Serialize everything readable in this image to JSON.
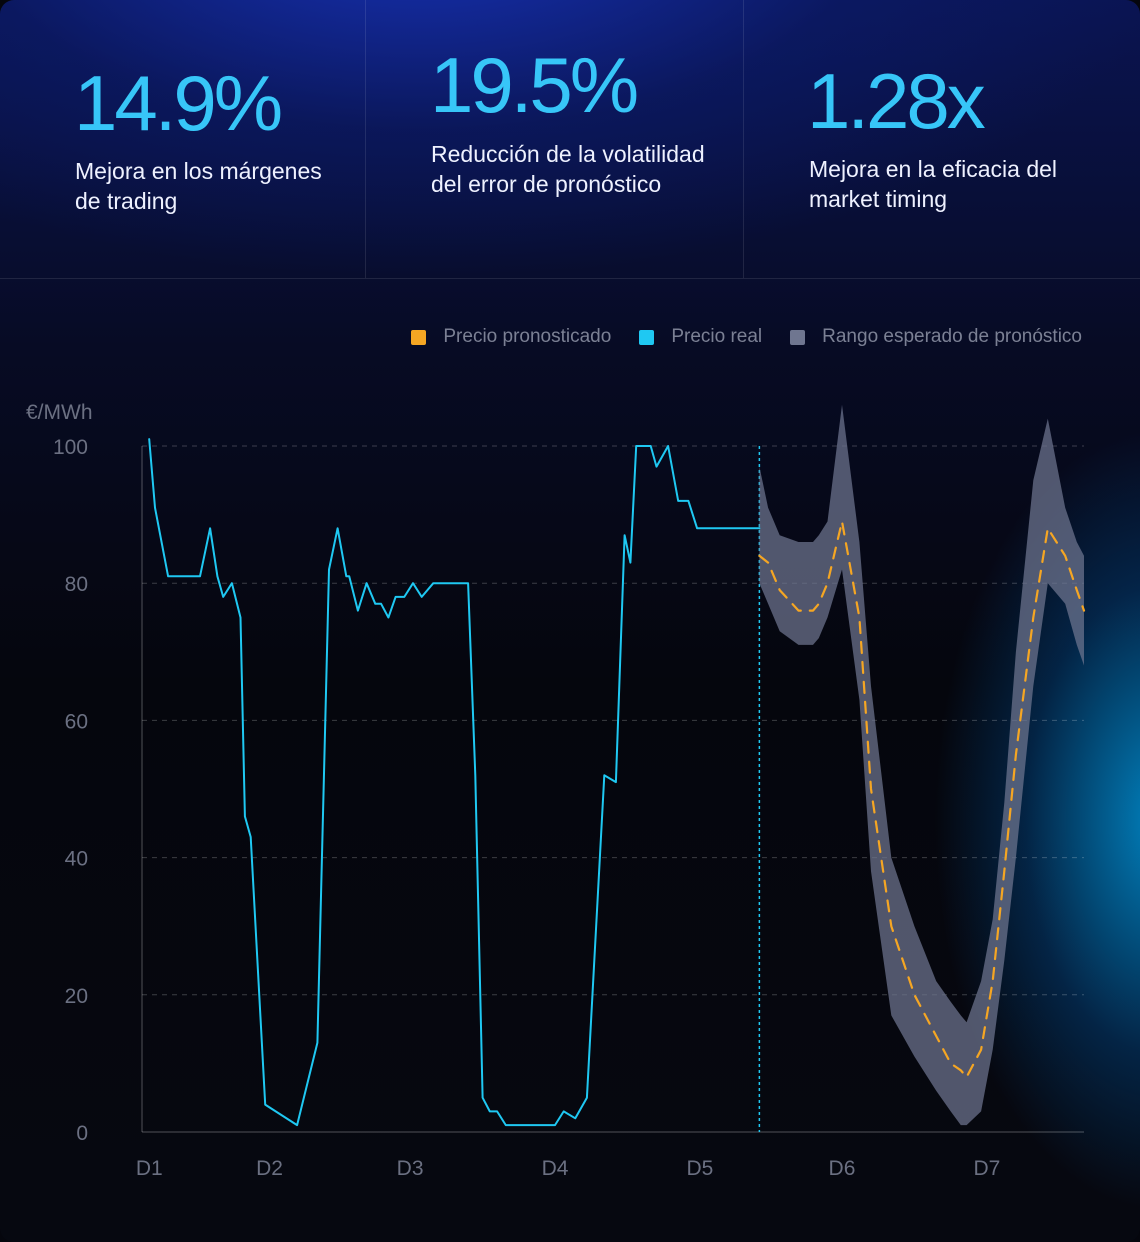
{
  "stats": [
    {
      "value": "14.9%",
      "description": "Mejora en los márgenes de trading"
    },
    {
      "value": "19.5%",
      "description": "Reducción de la volatilidad del error de pronóstico"
    },
    {
      "value": "1.28x",
      "description": "Mejora en la eficacia del market timing"
    }
  ],
  "colors": {
    "forecast": "#f5a623",
    "actual": "#1fc8f2",
    "range": "#6f7690",
    "stat_value": "#37c6f8"
  },
  "chart_data": {
    "type": "line",
    "ylabel": "€/MWh",
    "ylim": [
      0,
      100
    ],
    "yticks": [
      0,
      20,
      40,
      60,
      80,
      100
    ],
    "xlim": [
      0.95,
      7.45
    ],
    "x_ticks": [
      {
        "label": "D1",
        "x": 1.0
      },
      {
        "label": "D2",
        "x": 1.83
      },
      {
        "label": "D3",
        "x": 2.8
      },
      {
        "label": "D4",
        "x": 3.8
      },
      {
        "label": "D5",
        "x": 4.8
      },
      {
        "label": "D6",
        "x": 5.78
      },
      {
        "label": "D7",
        "x": 6.78
      }
    ],
    "grid": true,
    "legend_position": "top-right",
    "forecast_start_x": 5.21,
    "series": [
      {
        "name": "Precio pronosticado",
        "style": "dashed",
        "x": [
          5.21,
          5.27,
          5.35,
          5.48,
          5.58,
          5.62,
          5.68,
          5.78,
          5.9,
          5.98,
          6.12,
          6.28,
          6.43,
          6.53,
          6.6,
          6.64,
          6.74,
          6.82,
          6.9,
          6.98,
          7.1,
          7.2,
          7.32,
          7.4,
          7.45
        ],
        "y": [
          84,
          83,
          79,
          76,
          76,
          77,
          80,
          89,
          75,
          50,
          30,
          20,
          14,
          10,
          9,
          8,
          12,
          22,
          38,
          55,
          75,
          88,
          84,
          79,
          76
        ]
      },
      {
        "name": "Precio real",
        "style": "solid",
        "x": [
          1.0,
          1.04,
          1.13,
          1.25,
          1.35,
          1.42,
          1.47,
          1.51,
          1.57,
          1.63,
          1.66,
          1.7,
          1.8,
          2.02,
          2.16,
          2.24,
          2.3,
          2.36,
          2.38,
          2.44,
          2.5,
          2.56,
          2.6,
          2.65,
          2.7,
          2.76,
          2.82,
          2.88,
          2.96,
          3.03,
          3.12,
          3.2,
          3.25,
          3.3,
          3.35,
          3.4,
          3.46,
          3.52,
          3.6,
          3.68,
          3.76,
          3.8,
          3.86,
          3.94,
          4.02,
          4.14,
          4.22,
          4.28,
          4.32,
          4.36,
          4.4,
          4.46,
          4.5,
          4.58,
          4.65,
          4.72,
          4.78,
          4.85,
          4.92,
          4.99,
          5.03,
          5.06,
          5.1,
          5.16,
          5.21
        ],
        "y": [
          101,
          91,
          81,
          81,
          81,
          88,
          81,
          78,
          80,
          75,
          46,
          43,
          4,
          1,
          13,
          82,
          88,
          81,
          81,
          76,
          80,
          77,
          77,
          75,
          78,
          78,
          80,
          78,
          80,
          80,
          80,
          80,
          52,
          5,
          3,
          3,
          1,
          1,
          1,
          1,
          1,
          1,
          3,
          2,
          5,
          52,
          51,
          87,
          83,
          100,
          100,
          100,
          97,
          100,
          92,
          92,
          88,
          88,
          88,
          88,
          88,
          88,
          88,
          88,
          88
        ]
      },
      {
        "name": "Rango esperado de pronóstico",
        "style": "band",
        "x": [
          5.21,
          5.27,
          5.35,
          5.48,
          5.58,
          5.62,
          5.68,
          5.78,
          5.9,
          5.98,
          6.12,
          6.28,
          6.43,
          6.53,
          6.6,
          6.64,
          6.74,
          6.82,
          6.9,
          6.98,
          7.1,
          7.2,
          7.32,
          7.4,
          7.45
        ],
        "lower": [
          80,
          77,
          73,
          71,
          71,
          72,
          75,
          82,
          63,
          38,
          17,
          11,
          6,
          3,
          1,
          1,
          3,
          12,
          25,
          40,
          65,
          80,
          77,
          71,
          68
        ],
        "upper": [
          97,
          91,
          87,
          86,
          86,
          87,
          89,
          106,
          86,
          65,
          40,
          30,
          22,
          19,
          17,
          16,
          22,
          31,
          48,
          70,
          95,
          104,
          91,
          86,
          84
        ]
      }
    ]
  }
}
